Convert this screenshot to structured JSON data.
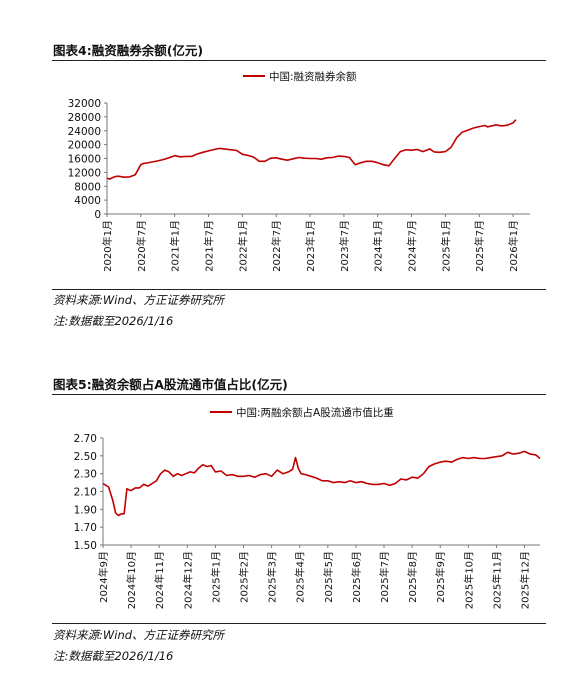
{
  "figures": [
    {
      "title": "图表4:融资融券余额(亿元)",
      "source": "资料来源:Wind、方正证券研究所",
      "note": "注:数据截至2026/1/16"
    },
    {
      "title": "图表5:融资余额占A股流通市值占比(亿元)",
      "source": "资料来源:Wind、方正证券研究所",
      "note": "注:数据截至2026/1/16"
    }
  ],
  "chart_data": [
    {
      "type": "line",
      "title": "图表4:融资融券余额(亿元)",
      "legend": "中国:融资融券余额",
      "legend_position": "top-center",
      "ylim": [
        0,
        32000
      ],
      "yticks": [
        0,
        4000,
        8000,
        12000,
        16000,
        20000,
        24000,
        28000,
        32000
      ],
      "ytick_labels": [
        "0",
        "4000",
        "8000",
        "12000",
        "16000",
        "20000",
        "24000",
        "28000",
        "32000"
      ],
      "xtick_labels": [
        "2020年1月",
        "2020年7月",
        "2021年1月",
        "2021年7月",
        "2022年1月",
        "2022年7月",
        "2023年1月",
        "2023年7月",
        "2024年1月",
        "2024年7月",
        "2025年1月",
        "2025年7月",
        "2026年1月"
      ],
      "grid": false,
      "color": "#c00000",
      "series": [
        {
          "name": "中国:融资融券余额",
          "x": [
            0,
            0.5,
            1,
            1.5,
            2,
            3,
            4,
            5,
            6,
            6.5,
            7,
            8,
            9,
            10,
            11,
            12,
            13,
            14,
            15,
            16,
            17,
            18,
            19,
            20,
            21,
            22,
            23,
            24,
            25,
            26,
            27,
            28,
            29,
            30,
            31,
            32,
            33,
            34,
            35,
            36,
            37,
            38,
            39,
            40,
            41,
            42,
            43,
            44,
            45,
            46,
            47,
            48,
            48.5,
            49,
            50,
            51,
            52,
            53,
            54,
            55,
            56,
            57,
            57.2,
            58,
            59,
            60,
            61,
            62,
            63,
            64,
            65,
            66,
            67,
            67.5,
            68,
            69,
            70,
            71,
            72,
            72.5
          ],
          "y": [
            10300,
            10100,
            10500,
            10800,
            10900,
            10600,
            10700,
            11300,
            14200,
            14600,
            14700,
            15000,
            15300,
            15700,
            16200,
            16800,
            16500,
            16600,
            16600,
            17300,
            17800,
            18200,
            18600,
            18900,
            18700,
            18500,
            18300,
            17200,
            16900,
            16400,
            15200,
            15200,
            16100,
            16200,
            15800,
            15500,
            15900,
            16300,
            16100,
            16000,
            16000,
            15800,
            16200,
            16300,
            16700,
            16600,
            16300,
            14200,
            14800,
            15200,
            15200,
            14800,
            14500,
            14200,
            13900,
            16000,
            18000,
            18500,
            18400,
            18600,
            18000,
            18600,
            18800,
            17900,
            17800,
            18000,
            19200,
            22000,
            23600,
            24200,
            24800,
            25200,
            25500,
            25100,
            25300,
            25700,
            25400,
            25600,
            26300,
            27200
          ]
        }
      ]
    },
    {
      "type": "line",
      "title": "图表5:融资余额占A股流通市值占比(亿元)",
      "legend": "中国:两融余额占A股流通市值比重",
      "legend_position": "top-center",
      "ylim": [
        1.5,
        2.7
      ],
      "yticks": [
        1.5,
        1.7,
        1.9,
        2.1,
        2.3,
        2.5,
        2.7
      ],
      "ytick_labels": [
        "1.50",
        "1.70",
        "1.90",
        "2.10",
        "2.30",
        "2.50",
        "2.70"
      ],
      "xtick_labels": [
        "2024年9月",
        "2024年10月",
        "2024年11月",
        "2024年12月",
        "2025年1月",
        "2025年2月",
        "2025年3月",
        "2025年4月",
        "2025年5月",
        "2025年6月",
        "2025年7月",
        "2025年8月",
        "2025年9月",
        "2025年10月",
        "2025年11月",
        "2025年12月"
      ],
      "grid": false,
      "color": "#c00000",
      "series": [
        {
          "name": "中国:两融余额占A股流通市值比重",
          "x": [
            0,
            0.1,
            0.2,
            0.35,
            0.45,
            0.55,
            0.65,
            0.75,
            0.85,
            1.0,
            1.15,
            1.3,
            1.45,
            1.6,
            1.75,
            1.9,
            2.05,
            2.2,
            2.35,
            2.5,
            2.65,
            2.8,
            2.95,
            3.1,
            3.25,
            3.4,
            3.55,
            3.7,
            3.85,
            4.0,
            4.2,
            4.4,
            4.6,
            4.8,
            5.0,
            5.2,
            5.4,
            5.6,
            5.8,
            6.0,
            6.2,
            6.4,
            6.6,
            6.75,
            6.85,
            6.95,
            7.05,
            7.2,
            7.4,
            7.6,
            7.8,
            8.0,
            8.2,
            8.4,
            8.6,
            8.8,
            9.0,
            9.2,
            9.4,
            9.6,
            9.8,
            10.0,
            10.2,
            10.4,
            10.6,
            10.8,
            11.0,
            11.2,
            11.4,
            11.6,
            11.8,
            12.0,
            12.2,
            12.4,
            12.6,
            12.8,
            13.0,
            13.2,
            13.4,
            13.6,
            13.8,
            14.0,
            14.2,
            14.4,
            14.6,
            14.8,
            15.0,
            15.2,
            15.4,
            15.55
          ],
          "y": [
            2.19,
            2.17,
            2.15,
            2.0,
            1.86,
            1.83,
            1.85,
            1.85,
            2.13,
            2.11,
            2.14,
            2.14,
            2.18,
            2.16,
            2.19,
            2.22,
            2.3,
            2.34,
            2.32,
            2.27,
            2.3,
            2.28,
            2.3,
            2.32,
            2.31,
            2.36,
            2.4,
            2.38,
            2.39,
            2.32,
            2.33,
            2.28,
            2.29,
            2.27,
            2.27,
            2.28,
            2.26,
            2.29,
            2.3,
            2.27,
            2.34,
            2.3,
            2.32,
            2.35,
            2.48,
            2.36,
            2.3,
            2.29,
            2.27,
            2.25,
            2.22,
            2.22,
            2.2,
            2.21,
            2.2,
            2.22,
            2.2,
            2.21,
            2.19,
            2.18,
            2.18,
            2.19,
            2.17,
            2.19,
            2.24,
            2.23,
            2.26,
            2.25,
            2.3,
            2.38,
            2.41,
            2.43,
            2.44,
            2.43,
            2.46,
            2.48,
            2.47,
            2.48,
            2.47,
            2.47,
            2.48,
            2.49,
            2.5,
            2.54,
            2.52,
            2.53,
            2.55,
            2.52,
            2.51,
            2.47
          ]
        }
      ]
    }
  ]
}
